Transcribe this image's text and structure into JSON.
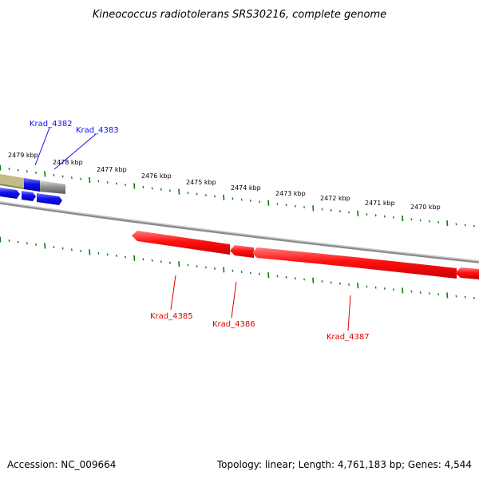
{
  "title": "Kineococcus radiotolerans SRS30216, complete genome",
  "footer": {
    "accession": "Accession: NC_009664",
    "topology": "Topology: linear; Length: 4,761,183 bp; Genes: 4,544"
  },
  "colors": {
    "tick": "#0a7a0a",
    "forward_gene": "#1010ee",
    "reverse_gene": "#ee1010",
    "backbone": "#8a8a8a",
    "highlight_band": "#c2bd86"
  },
  "kbp_labels": [
    "2479 kbp",
    "2478 kbp",
    "2477 kbp",
    "2476 kbp",
    "2475 kbp",
    "2474 kbp",
    "2473 kbp",
    "2472 kbp",
    "2471 kbp",
    "2470 kbp"
  ],
  "genes": {
    "forward": [
      {
        "label": "Krad_4382"
      },
      {
        "label": "Krad_4383"
      }
    ],
    "reverse": [
      {
        "label": "Krad_4385"
      },
      {
        "label": "Krad_4386"
      },
      {
        "label": "Krad_4387"
      }
    ]
  }
}
